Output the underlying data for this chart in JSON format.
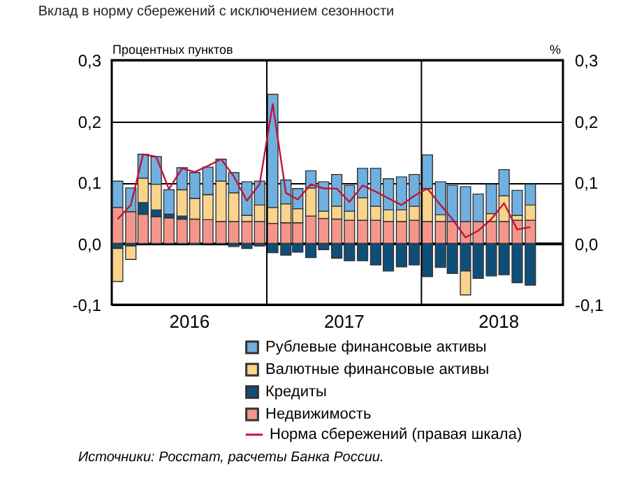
{
  "chart_data": {
    "type": "bar",
    "stacked": true,
    "title": "Вклад в норму сбережений с исключением сезонности",
    "ylabel": "Процентных пунктов",
    "y2label": "%",
    "annotations": [
      "Источники: Росстат, расчеты Банка России."
    ],
    "x": [
      "2016-01-15",
      "2016-02-15",
      "2016-03-15",
      "2016-04-15",
      "2016-05-15",
      "2016-06-15",
      "2016-07-15",
      "2016-08-15",
      "2016-09-15",
      "2016-10-15",
      "2016-11-15",
      "2016-12-15",
      "2017-01-15",
      "2017-02-15",
      "2017-03-15",
      "2017-04-15",
      "2017-05-15",
      "2017-06-15",
      "2017-07-15",
      "2017-08-15",
      "2017-09-15",
      "2017-10-15",
      "2017-11-15",
      "2017-12-15",
      "2018-01-15",
      "2018-02-15",
      "2018-03-15",
      "2018-04-15",
      "2018-05-15",
      "2018-06-15",
      "2018-07-15",
      "2018-08-15",
      "2018-09-15"
    ],
    "xlim": [
      "2016-01-01",
      "2018-12-01"
    ],
    "xticks": [
      {
        "value": "2016-07-01",
        "label": "2016"
      },
      {
        "value": "2017-07-01",
        "label": "2017"
      },
      {
        "value": "2018-07-01",
        "label": "2018"
      }
    ],
    "ylim": [
      -0.1,
      0.3
    ],
    "yticks": [
      {
        "value": -0.1,
        "label": "-0,1"
      },
      {
        "value": 0.0,
        "label": "0,0"
      },
      {
        "value": 0.1,
        "label": "0,1"
      },
      {
        "value": 0.2,
        "label": "0,2"
      },
      {
        "value": 0.3,
        "label": "0,3"
      }
    ],
    "y2lim": [
      -0.1,
      0.3
    ],
    "y2ticks": [
      {
        "value": -0.1,
        "label": "-0,1"
      },
      {
        "value": 0.0,
        "label": "0,0"
      },
      {
        "value": 0.1,
        "label": "0,1"
      },
      {
        "value": 0.2,
        "label": "0,2"
      },
      {
        "value": 0.3,
        "label": "0,3"
      }
    ],
    "grid": "y",
    "legend": "bottom",
    "ref_lines": [
      {
        "axis": "x",
        "value": "2017-01-01",
        "color": "#000000"
      },
      {
        "axis": "x",
        "value": "2018-01-01",
        "color": "#000000"
      }
    ],
    "series": [
      {
        "name": "Недвижимость",
        "color": "#f4978a",
        "values": [
          0.059,
          0.052,
          0.048,
          0.044,
          0.042,
          0.04,
          0.04,
          0.039,
          0.036,
          0.036,
          0.036,
          0.036,
          0.033,
          0.034,
          0.034,
          0.045,
          0.041,
          0.04,
          0.038,
          0.038,
          0.038,
          0.036,
          0.036,
          0.038,
          0.036,
          0.036,
          0.036,
          0.036,
          0.036,
          0.036,
          0.036,
          0.038,
          0.038
        ]
      },
      {
        "name": "Кредиты",
        "color": "#0e4f7a",
        "values": [
          -0.008,
          -0.004,
          0.019,
          0.011,
          0.006,
          0.005,
          -0.002,
          null,
          null,
          -0.005,
          -0.008,
          -0.004,
          -0.015,
          -0.019,
          -0.014,
          -0.023,
          -0.01,
          -0.024,
          -0.028,
          -0.028,
          -0.035,
          -0.045,
          -0.038,
          -0.035,
          -0.054,
          -0.039,
          -0.049,
          -0.045,
          -0.057,
          -0.053,
          -0.051,
          -0.064,
          -0.068
        ]
      },
      {
        "name": "Валютные финансовые активы",
        "color": "#fad48a",
        "values": [
          -0.054,
          -0.022,
          0.04,
          0.042,
          null,
          0.043,
          0.034,
          0.041,
          0.066,
          0.047,
          0.01,
          0.027,
          0.026,
          0.031,
          0.023,
          0.046,
          0.012,
          0.021,
          0.015,
          0.037,
          0.023,
          0.019,
          0.019,
          0.023,
          0.054,
          0.011,
          null,
          -0.039,
          null,
          0.013,
          0.042,
          0.008,
          0.025
        ]
      },
      {
        "name": "Рублевые финансовые активы",
        "color": "#6fb0e0",
        "values": [
          0.043,
          0.039,
          0.039,
          0.045,
          0.04,
          0.036,
          0.042,
          0.045,
          0.036,
          0.033,
          0.055,
          0.039,
          0.185,
          0.039,
          0.033,
          0.028,
          0.048,
          0.052,
          0.042,
          0.048,
          0.062,
          0.051,
          0.054,
          0.052,
          0.055,
          0.054,
          0.059,
          0.057,
          0.045,
          0.048,
          0.043,
          0.041,
          0.034
        ]
      },
      {
        "name": "Норма сбережений (правая шкала)",
        "type": "line",
        "axis": "y2",
        "color": "#c0143c",
        "values": [
          0.04,
          0.063,
          0.146,
          0.142,
          0.089,
          0.123,
          0.117,
          0.127,
          0.138,
          0.11,
          0.07,
          0.097,
          0.228,
          0.083,
          0.072,
          0.097,
          0.09,
          0.09,
          0.068,
          0.095,
          0.085,
          0.074,
          0.063,
          0.078,
          0.09,
          0.063,
          0.04,
          0.01,
          0.021,
          0.04,
          0.066,
          0.023,
          0.027
        ]
      }
    ]
  }
}
